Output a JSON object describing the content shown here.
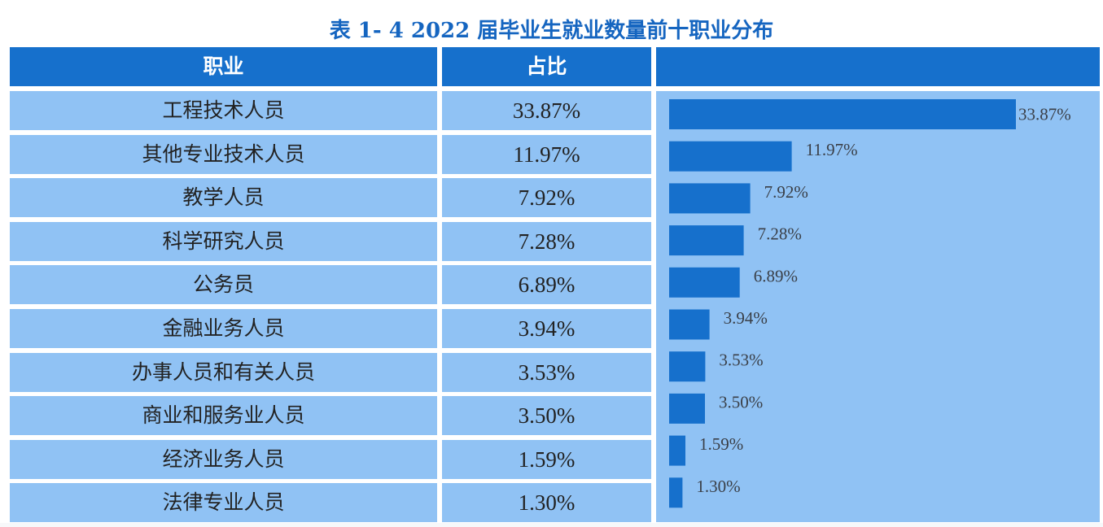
{
  "title": "表 1- 4  2022 届毕业生就业数量前十职业分布",
  "table": {
    "headers": [
      "职业",
      "占比",
      ""
    ],
    "rows": [
      {
        "name": "工程技术人员",
        "pct": "33.87%"
      },
      {
        "name": "其他专业技术人员",
        "pct": "11.97%"
      },
      {
        "name": "教学人员",
        "pct": "7.92%"
      },
      {
        "name": "科学研究人员",
        "pct": "7.28%"
      },
      {
        "name": "公务员",
        "pct": "6.89%"
      },
      {
        "name": "金融业务人员",
        "pct": "3.94%"
      },
      {
        "name": "办事人员和有关人员",
        "pct": "3.53%"
      },
      {
        "name": "商业和服务业人员",
        "pct": "3.50%"
      },
      {
        "name": "经济业务人员",
        "pct": "1.59%"
      },
      {
        "name": "法律专业人员",
        "pct": "1.30%"
      }
    ]
  },
  "colors": {
    "header_bg": "#1670CC",
    "cell_bg": "#90C2F4",
    "bar": "#1670CC",
    "title": "#1565C0"
  },
  "chart_data": {
    "type": "bar",
    "orientation": "horizontal",
    "categories": [
      "工程技术人员",
      "其他专业技术人员",
      "教学人员",
      "科学研究人员",
      "公务员",
      "金融业务人员",
      "办事人员和有关人员",
      "商业和服务业人员",
      "经济业务人员",
      "法律专业人员"
    ],
    "values": [
      33.87,
      11.97,
      7.92,
      7.28,
      6.89,
      3.94,
      3.53,
      3.5,
      1.59,
      1.3
    ],
    "value_labels": [
      "33.87%",
      "11.97%",
      "7.92%",
      "7.28%",
      "6.89%",
      "3.94%",
      "3.53%",
      "3.50%",
      "1.59%",
      "1.30%"
    ],
    "unit": "%",
    "grid": false
  }
}
